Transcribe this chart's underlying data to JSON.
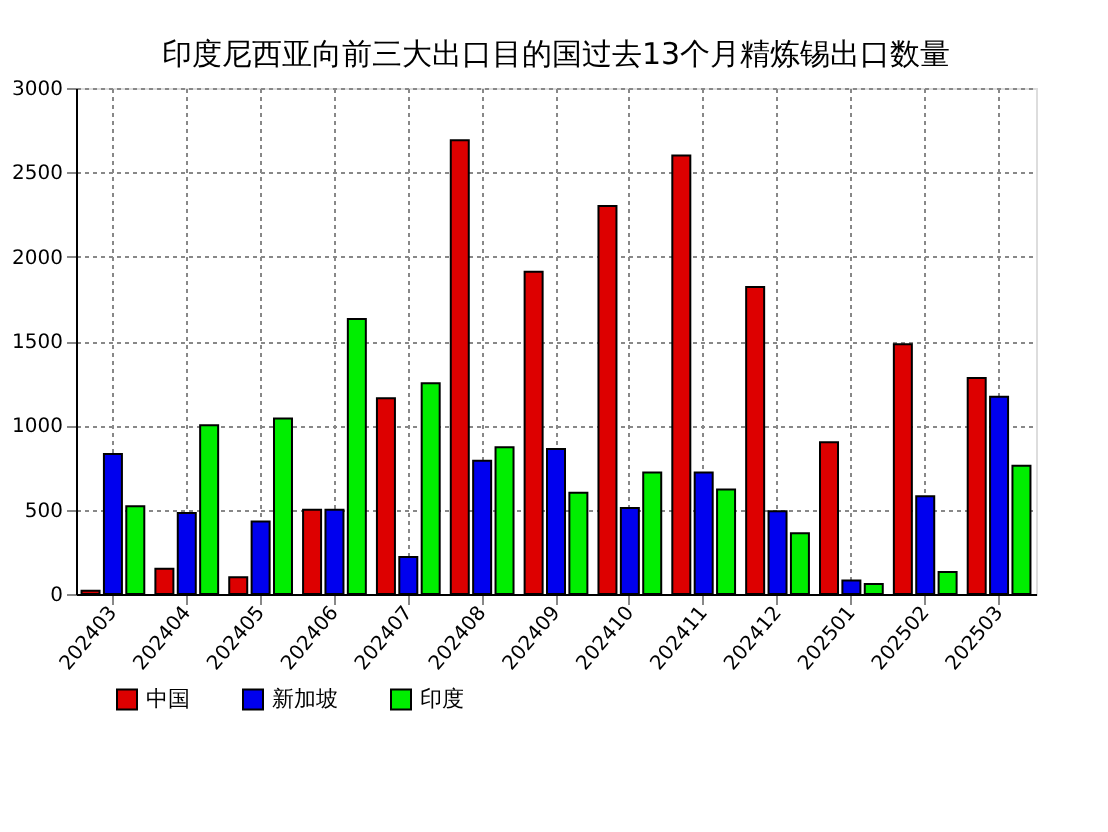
{
  "chart_data": {
    "type": "bar",
    "title": "印度尼西亚向前三大出口目的国过去13个月精炼锡出口数量",
    "categories": [
      "202403",
      "202404",
      "202405",
      "202406",
      "202407",
      "202408",
      "202409",
      "202410",
      "202411",
      "202412",
      "202501",
      "202502",
      "202503"
    ],
    "series": [
      {
        "name": "中国",
        "color": "#dd0000",
        "values": [
          20,
          150,
          100,
          500,
          1160,
          2690,
          1910,
          2300,
          2600,
          1820,
          900,
          1480,
          1280
        ]
      },
      {
        "name": "新加坡",
        "color": "#0000ee",
        "values": [
          830,
          480,
          430,
          500,
          220,
          790,
          860,
          510,
          720,
          490,
          80,
          580,
          1170
        ]
      },
      {
        "name": "印度",
        "color": "#00ee00",
        "values": [
          520,
          1000,
          1040,
          1630,
          1250,
          870,
          600,
          720,
          620,
          360,
          60,
          130,
          760
        ]
      }
    ],
    "ylim": [
      0,
      3000
    ],
    "yticks": [
      0,
      500,
      1000,
      1500,
      2000,
      2500,
      3000
    ],
    "grid": true,
    "legend": "bottom left"
  }
}
